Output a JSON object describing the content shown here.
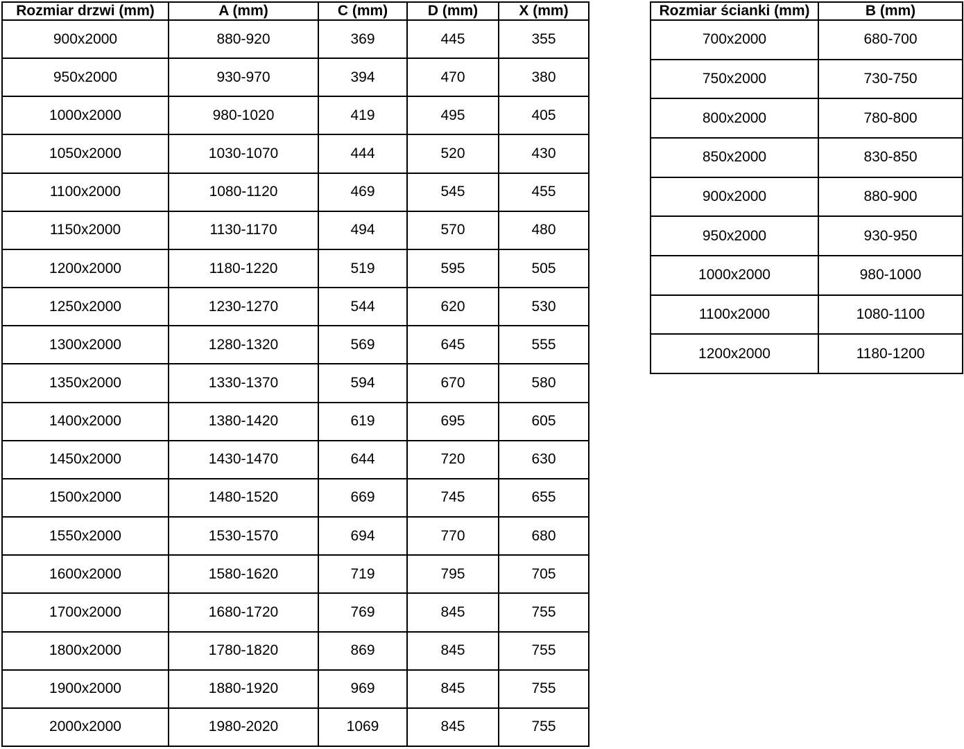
{
  "colors": {
    "background": "#ffffff",
    "border": "#000000",
    "text": "#000000"
  },
  "door_table": {
    "headers": [
      "Rozmiar drzwi (mm)",
      "A (mm)",
      "C (mm)",
      "D (mm)",
      "X (mm)"
    ],
    "rows": [
      [
        "900x2000",
        "880-920",
        "369",
        "445",
        "355"
      ],
      [
        "950x2000",
        "930-970",
        "394",
        "470",
        "380"
      ],
      [
        "1000x2000",
        "980-1020",
        "419",
        "495",
        "405"
      ],
      [
        "1050x2000",
        "1030-1070",
        "444",
        "520",
        "430"
      ],
      [
        "1100x2000",
        "1080-1120",
        "469",
        "545",
        "455"
      ],
      [
        "1150x2000",
        "1130-1170",
        "494",
        "570",
        "480"
      ],
      [
        "1200x2000",
        "1180-1220",
        "519",
        "595",
        "505"
      ],
      [
        "1250x2000",
        "1230-1270",
        "544",
        "620",
        "530"
      ],
      [
        "1300x2000",
        "1280-1320",
        "569",
        "645",
        "555"
      ],
      [
        "1350x2000",
        "1330-1370",
        "594",
        "670",
        "580"
      ],
      [
        "1400x2000",
        "1380-1420",
        "619",
        "695",
        "605"
      ],
      [
        "1450x2000",
        "1430-1470",
        "644",
        "720",
        "630"
      ],
      [
        "1500x2000",
        "1480-1520",
        "669",
        "745",
        "655"
      ],
      [
        "1550x2000",
        "1530-1570",
        "694",
        "770",
        "680"
      ],
      [
        "1600x2000",
        "1580-1620",
        "719",
        "795",
        "705"
      ],
      [
        "1700x2000",
        "1680-1720",
        "769",
        "845",
        "755"
      ],
      [
        "1800x2000",
        "1780-1820",
        "869",
        "845",
        "755"
      ],
      [
        "1900x2000",
        "1880-1920",
        "969",
        "845",
        "755"
      ],
      [
        "2000x2000",
        "1980-2020",
        "1069",
        "845",
        "755"
      ]
    ]
  },
  "wall_table": {
    "headers": [
      "Rozmiar ścianki (mm)",
      "B (mm)"
    ],
    "rows": [
      [
        "700x2000",
        "680-700"
      ],
      [
        "750x2000",
        "730-750"
      ],
      [
        "800x2000",
        "780-800"
      ],
      [
        "850x2000",
        "830-850"
      ],
      [
        "900x2000",
        "880-900"
      ],
      [
        "950x2000",
        "930-950"
      ],
      [
        "1000x2000",
        "980-1000"
      ],
      [
        "1100x2000",
        "1080-1100"
      ],
      [
        "1200x2000",
        "1180-1200"
      ]
    ]
  }
}
